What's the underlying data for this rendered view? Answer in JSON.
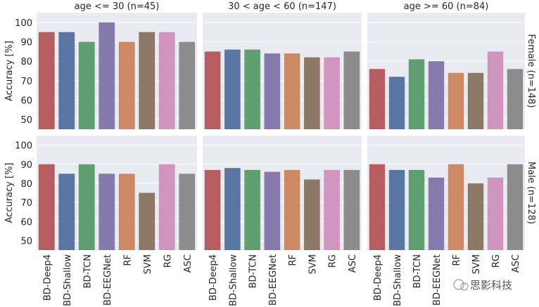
{
  "chart_data": [
    {
      "type": "bar",
      "title": "age <= 30 (n=45)",
      "ylabel": "Accuracy [%]",
      "values": [
        95,
        95,
        90,
        100,
        90,
        95,
        95,
        90
      ],
      "colors": [
        "#b55d60",
        "#5975a4",
        "#5f9e6e",
        "#857aab",
        "#cc8963",
        "#8d7866",
        "#d095bf",
        "#8c8c8c"
      ],
      "ylim": [
        45,
        105
      ],
      "yticks": [
        50,
        60,
        70,
        80,
        90,
        100
      ],
      "grid": true
    },
    {
      "type": "bar",
      "title": "30 < age < 60 (n=147)",
      "values": [
        85,
        86,
        86,
        84,
        84,
        82,
        82,
        85
      ],
      "colors": [
        "#b55d60",
        "#5975a4",
        "#5f9e6e",
        "#857aab",
        "#cc8963",
        "#8d7866",
        "#d095bf",
        "#8c8c8c"
      ],
      "ylim": [
        45,
        105
      ],
      "yticks": [
        50,
        60,
        70,
        80,
        90,
        100
      ],
      "grid": true
    },
    {
      "type": "bar",
      "title": "age >= 60 (n=84)",
      "row_label": "Female (n=148)",
      "values": [
        76,
        72,
        81,
        80,
        74,
        74,
        85,
        76
      ],
      "colors": [
        "#b55d60",
        "#5975a4",
        "#5f9e6e",
        "#857aab",
        "#cc8963",
        "#8d7866",
        "#d095bf",
        "#8c8c8c"
      ],
      "ylim": [
        45,
        105
      ],
      "yticks": [
        50,
        60,
        70,
        80,
        90,
        100
      ],
      "grid": true
    },
    {
      "type": "bar",
      "ylabel": "Accuracy [%]",
      "categories": [
        "BD-Deep4",
        "BD-Shallow",
        "BD-TCN",
        "BD-EEGNet",
        "RF",
        "SVM",
        "RG",
        "ASC"
      ],
      "values": [
        90,
        85,
        90,
        85,
        85,
        75,
        90,
        85
      ],
      "colors": [
        "#b55d60",
        "#5975a4",
        "#5f9e6e",
        "#857aab",
        "#cc8963",
        "#8d7866",
        "#d095bf",
        "#8c8c8c"
      ],
      "ylim": [
        45,
        105
      ],
      "yticks": [
        50,
        60,
        70,
        80,
        90,
        100
      ],
      "grid": true
    },
    {
      "type": "bar",
      "categories": [
        "BD-Deep4",
        "BD-Shallow",
        "BD-TCN",
        "BD-EEGNet",
        "RF",
        "SVM",
        "RG",
        "ASC"
      ],
      "values": [
        87,
        88,
        87,
        86,
        87,
        82,
        87,
        87
      ],
      "colors": [
        "#b55d60",
        "#5975a4",
        "#5f9e6e",
        "#857aab",
        "#cc8963",
        "#8d7866",
        "#d095bf",
        "#8c8c8c"
      ],
      "ylim": [
        45,
        105
      ],
      "yticks": [
        50,
        60,
        70,
        80,
        90,
        100
      ],
      "grid": true
    },
    {
      "type": "bar",
      "row_label": "Male (n=128)",
      "categories": [
        "BD-Deep4",
        "BD-Shallow",
        "BD-TCN",
        "BD-EEGNet",
        "RF",
        "SVM",
        "RG",
        "ASC"
      ],
      "values": [
        90,
        87,
        87,
        83,
        90,
        80,
        83,
        90
      ],
      "colors": [
        "#b55d60",
        "#5975a4",
        "#5f9e6e",
        "#857aab",
        "#cc8963",
        "#8d7866",
        "#d095bf",
        "#8c8c8c"
      ],
      "ylim": [
        45,
        105
      ],
      "yticks": [
        50,
        60,
        70,
        80,
        90,
        100
      ],
      "grid": true
    }
  ],
  "watermark": "思影科技"
}
